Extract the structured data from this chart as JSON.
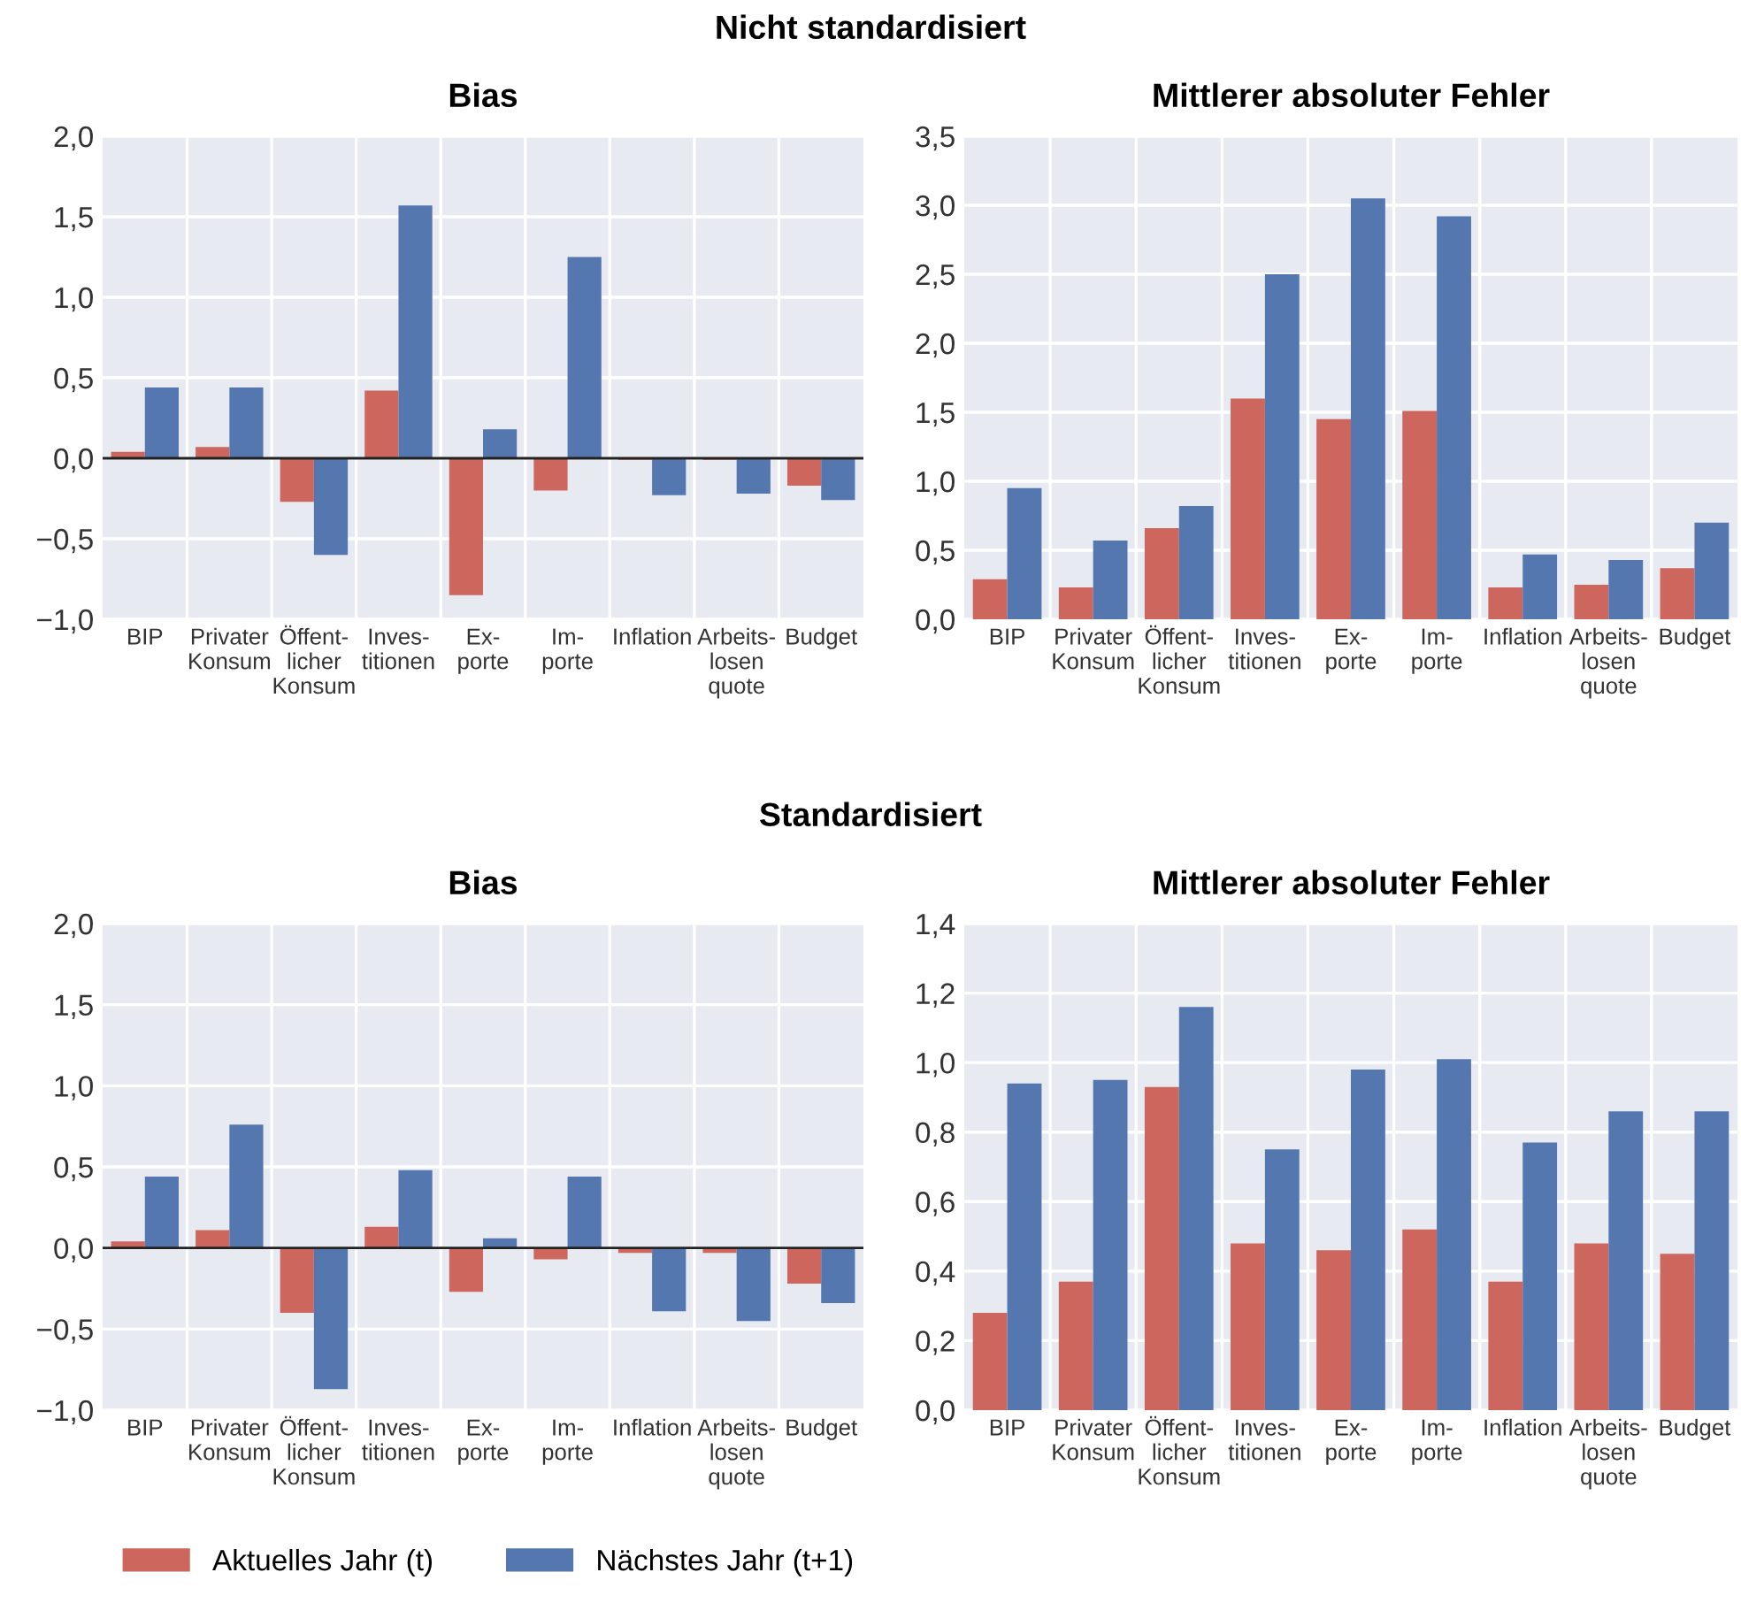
{
  "chart_data": [
    {
      "type": "bar",
      "title": "Bias",
      "annotations": [
        "Nicht standardisiert"
      ],
      "categories": [
        "BIP",
        "Privater\nKonsum",
        "Öffent-\nlicher\nKonsum",
        "Inves-\ntitionen",
        "Ex-\nporte",
        "Im-\nporte",
        "Inflation",
        "Arbeits-\nlosen\nquote",
        "Budget"
      ],
      "series": [
        {
          "color": "#cd665c",
          "values": [
            0.04,
            0.07,
            -0.27,
            0.42,
            -0.85,
            -0.2,
            -0.01,
            -0.01,
            -0.17
          ]
        },
        {
          "color": "#5577b0",
          "values": [
            0.44,
            0.44,
            -0.6,
            1.57,
            0.18,
            1.25,
            -0.23,
            -0.22,
            -0.26
          ]
        }
      ],
      "ylim": [
        -1.0,
        2.0
      ],
      "yticks": [
        {
          "value": -1.0,
          "label": "−1,0"
        },
        {
          "value": -0.5,
          "label": "−0,5"
        },
        {
          "value": 0.0,
          "label": "0,0"
        },
        {
          "value": 0.5,
          "label": "0,5"
        },
        {
          "value": 1.0,
          "label": "1,0"
        },
        {
          "value": 1.5,
          "label": "1,5"
        },
        {
          "value": 2.0,
          "label": "2,0"
        }
      ],
      "ref_lines": [
        {
          "axis": "y",
          "value": 0,
          "color": "#222222"
        }
      ],
      "grid": true
    },
    {
      "type": "bar",
      "title": "Mittlerer absoluter Fehler",
      "categories": [
        "BIP",
        "Privater\nKonsum",
        "Öffent-\nlicher\nKonsum",
        "Inves-\ntitionen",
        "Ex-\nporte",
        "Im-\nporte",
        "Inflation",
        "Arbeits-\nlosen\nquote",
        "Budget"
      ],
      "series": [
        {
          "color": "#cd665c",
          "values": [
            0.29,
            0.23,
            0.66,
            1.6,
            1.45,
            1.51,
            0.23,
            0.25,
            0.37
          ]
        },
        {
          "color": "#5577b0",
          "values": [
            0.95,
            0.57,
            0.82,
            2.5,
            3.05,
            2.92,
            0.47,
            0.43,
            0.7
          ]
        }
      ],
      "ylim": [
        0.0,
        3.5
      ],
      "yticks": [
        {
          "value": 0.0,
          "label": "0,0"
        },
        {
          "value": 0.5,
          "label": "0,5"
        },
        {
          "value": 1.0,
          "label": "1,0"
        },
        {
          "value": 1.5,
          "label": "1,5"
        },
        {
          "value": 2.0,
          "label": "2,0"
        },
        {
          "value": 2.5,
          "label": "2,5"
        },
        {
          "value": 3.0,
          "label": "3,0"
        },
        {
          "value": 3.5,
          "label": "3,5"
        }
      ],
      "grid": true
    },
    {
      "type": "bar",
      "title": "Bias",
      "annotations": [
        "Standardisiert"
      ],
      "categories": [
        "BIP",
        "Privater\nKonsum",
        "Öffent-\nlicher\nKonsum",
        "Inves-\ntitionen",
        "Ex-\nporte",
        "Im-\nporte",
        "Inflation",
        "Arbeits-\nlosen\nquote",
        "Budget"
      ],
      "series": [
        {
          "name": "Aktuelles Jahr (t)",
          "color": "#cd665c",
          "values": [
            0.04,
            0.11,
            -0.4,
            0.13,
            -0.27,
            -0.07,
            -0.03,
            -0.03,
            -0.22
          ]
        },
        {
          "name": "Nächstes Jahr (t+1)",
          "color": "#5577b0",
          "values": [
            0.44,
            0.76,
            -0.87,
            0.48,
            0.06,
            0.44,
            -0.39,
            -0.45,
            -0.34
          ]
        }
      ],
      "ylim": [
        -1.0,
        2.0
      ],
      "yticks": [
        {
          "value": -1.0,
          "label": "−1,0"
        },
        {
          "value": -0.5,
          "label": "−0,5"
        },
        {
          "value": 0.0,
          "label": "0,0"
        },
        {
          "value": 0.5,
          "label": "0,5"
        },
        {
          "value": 1.0,
          "label": "1,0"
        },
        {
          "value": 1.5,
          "label": "1,5"
        },
        {
          "value": 2.0,
          "label": "2,0"
        }
      ],
      "ref_lines": [
        {
          "axis": "y",
          "value": 0,
          "color": "#222222"
        }
      ],
      "grid": true,
      "legend": "bottom"
    },
    {
      "type": "bar",
      "title": "Mittlerer absoluter Fehler",
      "categories": [
        "BIP",
        "Privater\nKonsum",
        "Öffent-\nlicher\nKonsum",
        "Inves-\ntitionen",
        "Ex-\nporte",
        "Im-\nporte",
        "Inflation",
        "Arbeits-\nlosen\nquote",
        "Budget"
      ],
      "series": [
        {
          "color": "#cd665c",
          "values": [
            0.28,
            0.37,
            0.93,
            0.48,
            0.46,
            0.52,
            0.37,
            0.48,
            0.45
          ]
        },
        {
          "color": "#5577b0",
          "values": [
            0.94,
            0.95,
            1.16,
            0.75,
            0.98,
            1.01,
            0.77,
            0.86,
            0.86
          ]
        }
      ],
      "ylim": [
        0.0,
        1.4
      ],
      "yticks": [
        {
          "value": 0.0,
          "label": "0,0"
        },
        {
          "value": 0.2,
          "label": "0,2"
        },
        {
          "value": 0.4,
          "label": "0,4"
        },
        {
          "value": 0.6,
          "label": "0,6"
        },
        {
          "value": 0.8,
          "label": "0,8"
        },
        {
          "value": 1.0,
          "label": "1,0"
        },
        {
          "value": 1.2,
          "label": "1,2"
        },
        {
          "value": 1.4,
          "label": "1,4"
        }
      ],
      "grid": true
    }
  ]
}
